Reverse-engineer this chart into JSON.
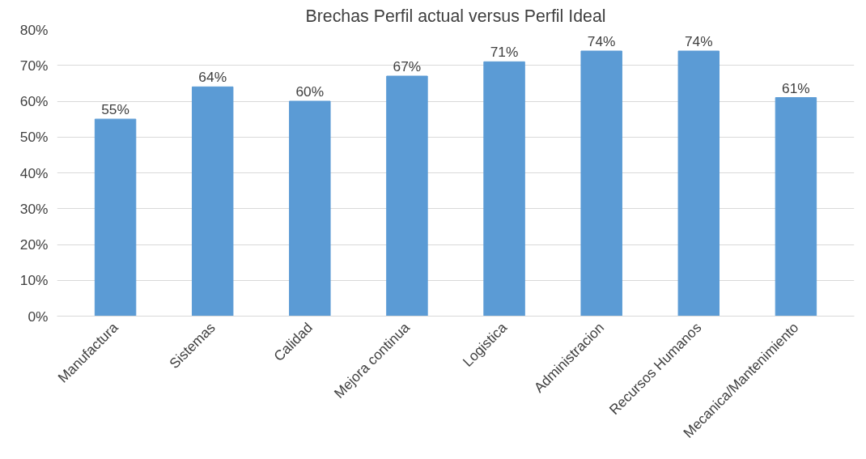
{
  "chart_data": {
    "type": "bar",
    "title": "Brechas Perfil actual versus Perfil Ideal",
    "categories": [
      "Manufactura",
      "Sistemas",
      "Calidad",
      "Mejora continua",
      "Logistica",
      "Administracion",
      "Recursos Humanos",
      "Mecanica/Mantenimiento"
    ],
    "values": [
      55,
      64,
      60,
      67,
      71,
      74,
      74,
      61
    ],
    "value_labels": [
      "55%",
      "64%",
      "60%",
      "67%",
      "71%",
      "74%",
      "74%",
      "61%"
    ],
    "color": "#5b9bd5",
    "ylim": [
      0,
      80
    ],
    "yticks": [
      {
        "value": 0,
        "label": "0%"
      },
      {
        "value": 10,
        "label": "10%"
      },
      {
        "value": 20,
        "label": "20%"
      },
      {
        "value": 30,
        "label": "30%"
      },
      {
        "value": 40,
        "label": "40%"
      },
      {
        "value": 50,
        "label": "50%"
      },
      {
        "value": 60,
        "label": "60%"
      },
      {
        "value": 70,
        "label": "70%"
      },
      {
        "value": 80,
        "label": "80%"
      }
    ],
    "grid": "y"
  }
}
